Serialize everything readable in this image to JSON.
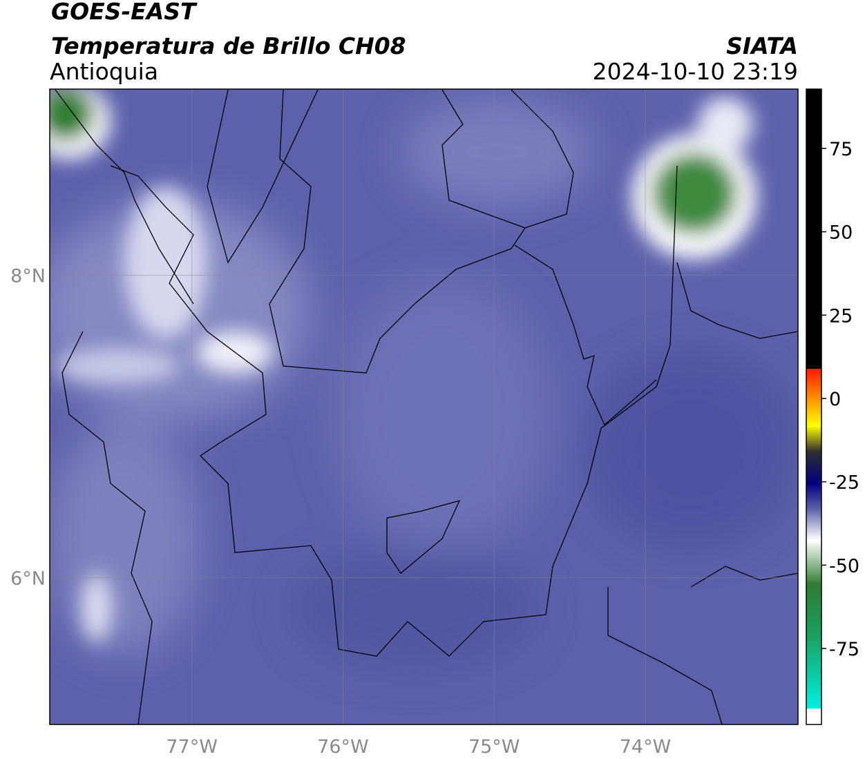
{
  "header": {
    "title": "GOES-EAST",
    "subtitle": "Temperatura de Brillo CH08",
    "region": "Antioquia",
    "source": "SIATA",
    "timestamp": "2024-10-10 23:19"
  },
  "map": {
    "xlim": [
      -77.94,
      -72.99
    ],
    "ylim": [
      5.03,
      9.23
    ],
    "xticks": [
      {
        "value": -77,
        "label": "77°W"
      },
      {
        "value": -76,
        "label": "76°W"
      },
      {
        "value": -75,
        "label": "75°W"
      },
      {
        "value": -74,
        "label": "74°W"
      }
    ],
    "yticks": [
      {
        "value": 8,
        "label": "8°N"
      },
      {
        "value": 6,
        "label": "6°N"
      }
    ],
    "grid": true
  },
  "colorbar": {
    "lim": [
      -97.8,
      92.8
    ],
    "ticks": [
      75,
      50,
      25,
      0,
      -25,
      -50,
      -75
    ]
  }
}
